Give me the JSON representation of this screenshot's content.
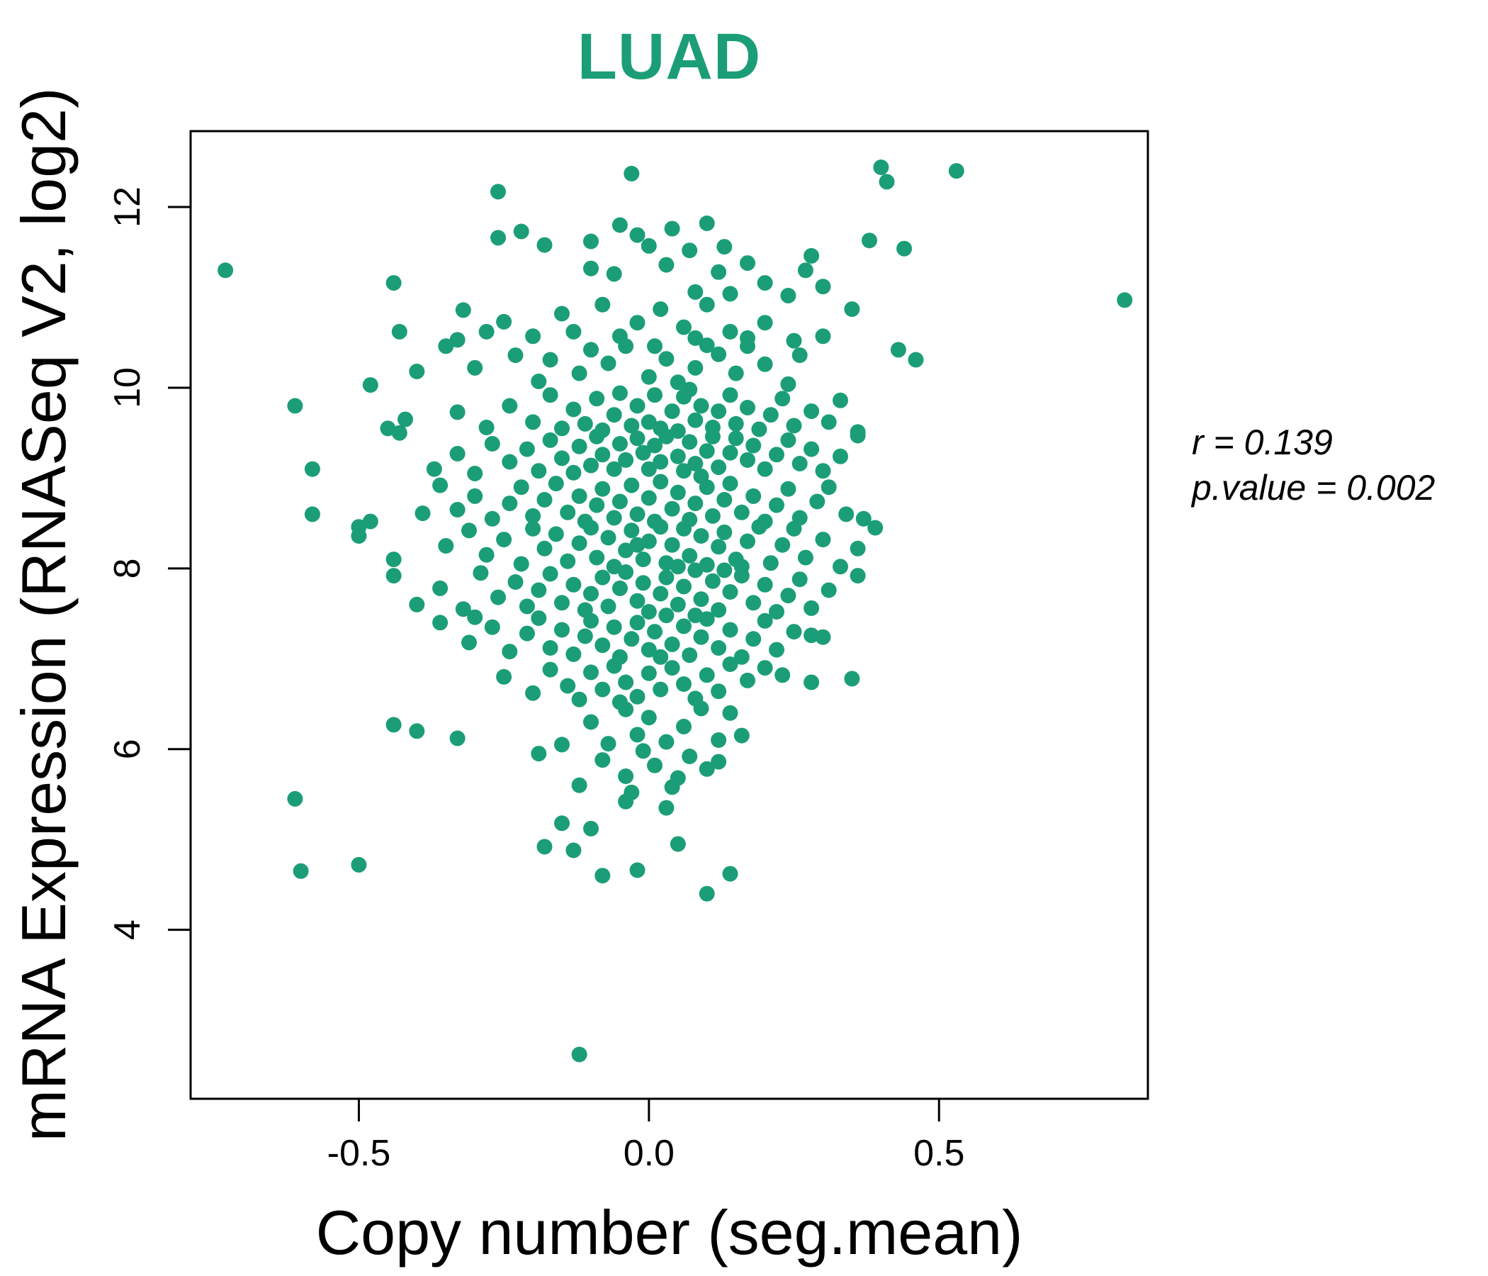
{
  "header": {
    "title": "LUAD",
    "title_color": "#1b9e77"
  },
  "annotation": {
    "line1": "r = 0.139",
    "line2": "p.value = 0.002"
  },
  "chart_data": {
    "type": "scatter",
    "title": "LUAD",
    "xlabel": "Copy number (seg.mean)",
    "ylabel": "mRNA Expression (RNASeq V2, log2)",
    "xlim": [
      -0.79,
      0.86
    ],
    "ylim": [
      2.13,
      12.84
    ],
    "x_ticks": [
      -0.5,
      0.0,
      0.5
    ],
    "x_tick_labels": [
      "-0.5",
      "0.0",
      "0.5"
    ],
    "y_ticks": [
      4,
      6,
      8,
      10,
      12
    ],
    "y_tick_labels": [
      "4",
      "6",
      "8",
      "10",
      "12"
    ],
    "grid": false,
    "legend": null,
    "point_color": "#1b9e77",
    "point_radius": 11,
    "stats": {
      "r": 0.139,
      "p_value": 0.002
    },
    "points": [
      [
        -0.26,
        12.17
      ],
      [
        -0.03,
        12.37
      ],
      [
        0.4,
        12.44
      ],
      [
        0.41,
        12.28
      ],
      [
        0.53,
        12.4
      ],
      [
        -0.26,
        11.66
      ],
      [
        -0.22,
        11.73
      ],
      [
        -0.18,
        11.58
      ],
      [
        -0.1,
        11.62
      ],
      [
        -0.05,
        11.8
      ],
      [
        -0.02,
        11.69
      ],
      [
        0.0,
        11.57
      ],
      [
        0.04,
        11.76
      ],
      [
        0.07,
        11.52
      ],
      [
        0.1,
        11.82
      ],
      [
        0.13,
        11.56
      ],
      [
        0.38,
        11.63
      ],
      [
        0.44,
        11.54
      ],
      [
        -0.73,
        11.3
      ],
      [
        -0.44,
        11.16
      ],
      [
        -0.1,
        11.32
      ],
      [
        -0.06,
        11.26
      ],
      [
        0.03,
        11.36
      ],
      [
        0.08,
        11.06
      ],
      [
        0.12,
        11.28
      ],
      [
        0.14,
        11.04
      ],
      [
        0.17,
        11.38
      ],
      [
        0.2,
        11.16
      ],
      [
        0.24,
        11.02
      ],
      [
        0.28,
        11.46
      ],
      [
        0.27,
        11.3
      ],
      [
        0.3,
        11.12
      ],
      [
        0.82,
        10.97
      ],
      [
        -0.43,
        10.62
      ],
      [
        -0.32,
        10.86
      ],
      [
        -0.33,
        10.53
      ],
      [
        -0.28,
        10.62
      ],
      [
        -0.25,
        10.73
      ],
      [
        -0.2,
        10.57
      ],
      [
        -0.15,
        10.82
      ],
      [
        -0.13,
        10.62
      ],
      [
        -0.08,
        10.92
      ],
      [
        -0.05,
        10.57
      ],
      [
        -0.02,
        10.72
      ],
      [
        0.02,
        10.87
      ],
      [
        0.06,
        10.67
      ],
      [
        0.08,
        10.55
      ],
      [
        0.1,
        10.92
      ],
      [
        0.14,
        10.62
      ],
      [
        0.17,
        10.55
      ],
      [
        0.2,
        10.72
      ],
      [
        0.25,
        10.52
      ],
      [
        0.3,
        10.57
      ],
      [
        0.35,
        10.87
      ],
      [
        -0.48,
        10.03
      ],
      [
        -0.4,
        10.18
      ],
      [
        -0.35,
        10.46
      ],
      [
        -0.3,
        10.22
      ],
      [
        -0.23,
        10.36
      ],
      [
        -0.19,
        10.07
      ],
      [
        -0.17,
        10.31
      ],
      [
        -0.12,
        10.16
      ],
      [
        -0.1,
        10.42
      ],
      [
        -0.07,
        10.27
      ],
      [
        -0.04,
        10.46
      ],
      [
        0.0,
        10.12
      ],
      [
        0.01,
        10.46
      ],
      [
        0.03,
        10.32
      ],
      [
        0.05,
        10.06
      ],
      [
        0.08,
        10.22
      ],
      [
        0.1,
        10.47
      ],
      [
        0.12,
        10.37
      ],
      [
        0.15,
        10.16
      ],
      [
        0.17,
        10.46
      ],
      [
        0.2,
        10.26
      ],
      [
        0.24,
        10.04
      ],
      [
        0.26,
        10.36
      ],
      [
        0.43,
        10.42
      ],
      [
        0.46,
        10.31
      ],
      [
        -0.61,
        9.8
      ],
      [
        -0.45,
        9.55
      ],
      [
        -0.43,
        9.5
      ],
      [
        -0.42,
        9.65
      ],
      [
        -0.33,
        9.73
      ],
      [
        -0.28,
        9.56
      ],
      [
        -0.24,
        9.8
      ],
      [
        -0.2,
        9.62
      ],
      [
        -0.17,
        9.92
      ],
      [
        -0.15,
        9.55
      ],
      [
        -0.13,
        9.76
      ],
      [
        -0.11,
        9.6
      ],
      [
        -0.09,
        9.88
      ],
      [
        -0.08,
        9.53
      ],
      [
        -0.06,
        9.7
      ],
      [
        -0.05,
        9.94
      ],
      [
        -0.03,
        9.58
      ],
      [
        -0.02,
        9.8
      ],
      [
        0.0,
        9.62
      ],
      [
        0.01,
        9.92
      ],
      [
        0.02,
        9.55
      ],
      [
        0.04,
        9.74
      ],
      [
        0.05,
        9.52
      ],
      [
        0.06,
        9.9
      ],
      [
        0.08,
        9.64
      ],
      [
        0.09,
        9.8
      ],
      [
        0.11,
        9.56
      ],
      [
        0.12,
        9.74
      ],
      [
        0.14,
        9.92
      ],
      [
        0.15,
        9.6
      ],
      [
        0.17,
        9.78
      ],
      [
        0.19,
        9.54
      ],
      [
        0.21,
        9.7
      ],
      [
        0.23,
        9.88
      ],
      [
        0.25,
        9.58
      ],
      [
        0.28,
        9.74
      ],
      [
        0.31,
        9.62
      ],
      [
        0.33,
        9.86
      ],
      [
        0.36,
        9.51
      ],
      [
        0.07,
        9.98
      ],
      [
        -0.58,
        9.1
      ],
      [
        -0.37,
        9.1
      ],
      [
        -0.33,
        9.27
      ],
      [
        -0.3,
        9.05
      ],
      [
        -0.27,
        9.38
      ],
      [
        -0.24,
        9.18
      ],
      [
        -0.21,
        9.32
      ],
      [
        -0.19,
        9.08
      ],
      [
        -0.17,
        9.42
      ],
      [
        -0.15,
        9.22
      ],
      [
        -0.13,
        9.06
      ],
      [
        -0.12,
        9.35
      ],
      [
        -0.1,
        9.14
      ],
      [
        -0.09,
        9.46
      ],
      [
        -0.08,
        9.26
      ],
      [
        -0.06,
        9.1
      ],
      [
        -0.05,
        9.38
      ],
      [
        -0.04,
        9.2
      ],
      [
        -0.02,
        9.44
      ],
      [
        -0.01,
        9.28
      ],
      [
        0.0,
        9.1
      ],
      [
        0.01,
        9.36
      ],
      [
        0.02,
        9.18
      ],
      [
        0.03,
        9.46
      ],
      [
        0.05,
        9.24
      ],
      [
        0.06,
        9.08
      ],
      [
        0.07,
        9.4
      ],
      [
        0.08,
        9.16
      ],
      [
        0.1,
        9.3
      ],
      [
        0.11,
        9.46
      ],
      [
        0.12,
        9.12
      ],
      [
        0.14,
        9.28
      ],
      [
        0.15,
        9.44
      ],
      [
        0.17,
        9.2
      ],
      [
        0.18,
        9.36
      ],
      [
        0.2,
        9.1
      ],
      [
        0.22,
        9.26
      ],
      [
        0.24,
        9.42
      ],
      [
        0.26,
        9.16
      ],
      [
        0.28,
        9.32
      ],
      [
        0.3,
        9.08
      ],
      [
        0.33,
        9.24
      ],
      [
        0.36,
        9.47
      ],
      [
        0.09,
        9.02
      ],
      [
        -0.58,
        8.6
      ],
      [
        -0.5,
        8.46
      ],
      [
        -0.48,
        8.52
      ],
      [
        -0.39,
        8.61
      ],
      [
        -0.36,
        8.92
      ],
      [
        -0.33,
        8.65
      ],
      [
        -0.3,
        8.8
      ],
      [
        -0.27,
        8.55
      ],
      [
        -0.24,
        8.72
      ],
      [
        -0.22,
        8.9
      ],
      [
        -0.2,
        8.58
      ],
      [
        -0.18,
        8.76
      ],
      [
        -0.16,
        8.94
      ],
      [
        -0.14,
        8.62
      ],
      [
        -0.12,
        8.8
      ],
      [
        -0.11,
        8.52
      ],
      [
        -0.09,
        8.7
      ],
      [
        -0.08,
        8.88
      ],
      [
        -0.06,
        8.56
      ],
      [
        -0.05,
        8.74
      ],
      [
        -0.03,
        8.92
      ],
      [
        -0.02,
        8.6
      ],
      [
        0.0,
        8.78
      ],
      [
        0.01,
        8.52
      ],
      [
        0.02,
        8.96
      ],
      [
        0.04,
        8.66
      ],
      [
        0.05,
        8.84
      ],
      [
        0.07,
        8.54
      ],
      [
        0.08,
        8.72
      ],
      [
        0.1,
        8.9
      ],
      [
        0.11,
        8.58
      ],
      [
        0.13,
        8.76
      ],
      [
        0.14,
        8.94
      ],
      [
        0.16,
        8.62
      ],
      [
        0.18,
        8.8
      ],
      [
        0.2,
        8.52
      ],
      [
        0.22,
        8.7
      ],
      [
        0.24,
        8.88
      ],
      [
        0.26,
        8.56
      ],
      [
        0.29,
        8.74
      ],
      [
        0.31,
        8.9
      ],
      [
        0.34,
        8.6
      ],
      [
        0.37,
        8.55
      ],
      [
        0.39,
        8.45
      ],
      [
        -0.5,
        8.36
      ],
      [
        -0.44,
        8.1
      ],
      [
        -0.35,
        8.25
      ],
      [
        -0.31,
        8.42
      ],
      [
        -0.28,
        8.15
      ],
      [
        -0.25,
        8.32
      ],
      [
        -0.22,
        8.05
      ],
      [
        -0.2,
        8.44
      ],
      [
        -0.18,
        8.22
      ],
      [
        -0.16,
        8.38
      ],
      [
        -0.14,
        8.08
      ],
      [
        -0.12,
        8.28
      ],
      [
        -0.1,
        8.45
      ],
      [
        -0.09,
        8.12
      ],
      [
        -0.07,
        8.34
      ],
      [
        -0.06,
        8.02
      ],
      [
        -0.04,
        8.2
      ],
      [
        -0.03,
        8.42
      ],
      [
        -0.02,
        8.26
      ],
      [
        -0.01,
        8.1
      ],
      [
        0.0,
        8.3
      ],
      [
        0.02,
        8.46
      ],
      [
        0.03,
        8.06
      ],
      [
        0.04,
        8.26
      ],
      [
        0.05,
        8.02
      ],
      [
        0.06,
        8.44
      ],
      [
        0.07,
        8.14
      ],
      [
        0.09,
        8.36
      ],
      [
        0.1,
        8.04
      ],
      [
        0.12,
        8.24
      ],
      [
        0.13,
        8.4
      ],
      [
        0.15,
        8.1
      ],
      [
        0.16,
        8.02
      ],
      [
        0.17,
        8.3
      ],
      [
        0.19,
        8.46
      ],
      [
        0.21,
        8.06
      ],
      [
        0.23,
        8.26
      ],
      [
        0.25,
        8.44
      ],
      [
        0.27,
        8.12
      ],
      [
        0.3,
        8.32
      ],
      [
        0.33,
        8.02
      ],
      [
        0.36,
        8.22
      ],
      [
        -0.44,
        7.92
      ],
      [
        -0.4,
        7.6
      ],
      [
        -0.36,
        7.78
      ],
      [
        -0.32,
        7.55
      ],
      [
        -0.29,
        7.95
      ],
      [
        -0.26,
        7.68
      ],
      [
        -0.23,
        7.85
      ],
      [
        -0.21,
        7.58
      ],
      [
        -0.19,
        7.76
      ],
      [
        -0.17,
        7.94
      ],
      [
        -0.15,
        7.62
      ],
      [
        -0.13,
        7.82
      ],
      [
        -0.11,
        7.54
      ],
      [
        -0.1,
        7.72
      ],
      [
        -0.08,
        7.9
      ],
      [
        -0.07,
        7.58
      ],
      [
        -0.05,
        7.78
      ],
      [
        -0.04,
        7.96
      ],
      [
        -0.02,
        7.64
      ],
      [
        -0.01,
        7.84
      ],
      [
        0.0,
        7.52
      ],
      [
        0.02,
        7.72
      ],
      [
        0.03,
        7.9
      ],
      [
        0.05,
        7.6
      ],
      [
        0.06,
        7.8
      ],
      [
        0.08,
        7.98
      ],
      [
        0.09,
        7.66
      ],
      [
        0.11,
        7.86
      ],
      [
        0.12,
        7.54
      ],
      [
        0.13,
        7.98
      ],
      [
        0.14,
        7.74
      ],
      [
        0.16,
        7.92
      ],
      [
        0.18,
        7.62
      ],
      [
        0.2,
        7.82
      ],
      [
        0.22,
        7.52
      ],
      [
        0.24,
        7.7
      ],
      [
        0.26,
        7.88
      ],
      [
        0.28,
        7.56
      ],
      [
        0.31,
        7.76
      ],
      [
        0.36,
        7.92
      ],
      [
        -0.36,
        7.4
      ],
      [
        -0.31,
        7.18
      ],
      [
        -0.3,
        7.46
      ],
      [
        -0.27,
        7.35
      ],
      [
        -0.24,
        7.08
      ],
      [
        -0.21,
        7.28
      ],
      [
        -0.19,
        7.45
      ],
      [
        -0.17,
        7.12
      ],
      [
        -0.15,
        7.32
      ],
      [
        -0.13,
        7.05
      ],
      [
        -0.11,
        7.25
      ],
      [
        -0.1,
        7.42
      ],
      [
        -0.08,
        7.15
      ],
      [
        -0.06,
        7.35
      ],
      [
        -0.05,
        7.02
      ],
      [
        -0.03,
        7.22
      ],
      [
        -0.02,
        7.4
      ],
      [
        0.0,
        7.1
      ],
      [
        0.01,
        7.3
      ],
      [
        0.02,
        7.02
      ],
      [
        0.03,
        7.48
      ],
      [
        0.04,
        7.16
      ],
      [
        0.06,
        7.36
      ],
      [
        0.07,
        7.04
      ],
      [
        0.08,
        7.48
      ],
      [
        0.09,
        7.24
      ],
      [
        0.1,
        7.44
      ],
      [
        0.12,
        7.12
      ],
      [
        0.14,
        7.32
      ],
      [
        0.16,
        7.02
      ],
      [
        0.18,
        7.22
      ],
      [
        0.2,
        7.42
      ],
      [
        0.22,
        7.1
      ],
      [
        0.25,
        7.3
      ],
      [
        0.28,
        7.26
      ],
      [
        0.3,
        7.24
      ],
      [
        -0.25,
        6.8
      ],
      [
        -0.2,
        6.62
      ],
      [
        -0.17,
        6.88
      ],
      [
        -0.14,
        6.7
      ],
      [
        -0.12,
        6.55
      ],
      [
        -0.1,
        6.85
      ],
      [
        -0.08,
        6.66
      ],
      [
        -0.06,
        6.92
      ],
      [
        -0.05,
        6.52
      ],
      [
        -0.04,
        6.74
      ],
      [
        -0.02,
        6.58
      ],
      [
        0.0,
        6.84
      ],
      [
        0.02,
        6.66
      ],
      [
        0.04,
        6.9
      ],
      [
        0.06,
        6.72
      ],
      [
        0.08,
        6.56
      ],
      [
        0.1,
        6.82
      ],
      [
        0.12,
        6.64
      ],
      [
        0.14,
        6.94
      ],
      [
        0.17,
        6.76
      ],
      [
        0.2,
        6.9
      ],
      [
        0.23,
        6.82
      ],
      [
        0.28,
        6.74
      ],
      [
        0.35,
        6.78
      ],
      [
        -0.44,
        6.27
      ],
      [
        -0.4,
        6.2
      ],
      [
        -0.33,
        6.12
      ],
      [
        -0.15,
        6.05
      ],
      [
        -0.1,
        6.3
      ],
      [
        -0.07,
        6.06
      ],
      [
        -0.04,
        6.44
      ],
      [
        -0.02,
        6.16
      ],
      [
        0.0,
        6.35
      ],
      [
        0.03,
        6.08
      ],
      [
        0.06,
        6.25
      ],
      [
        0.09,
        6.45
      ],
      [
        0.12,
        6.1
      ],
      [
        0.14,
        6.4
      ],
      [
        0.16,
        6.15
      ],
      [
        -0.19,
        5.95
      ],
      [
        -0.12,
        5.6
      ],
      [
        -0.08,
        5.88
      ],
      [
        -0.04,
        5.7
      ],
      [
        -0.03,
        5.52
      ],
      [
        -0.01,
        5.98
      ],
      [
        0.01,
        5.82
      ],
      [
        0.04,
        5.58
      ],
      [
        0.05,
        5.68
      ],
      [
        0.07,
        5.92
      ],
      [
        0.1,
        5.78
      ],
      [
        0.12,
        5.86
      ],
      [
        -0.61,
        5.45
      ],
      [
        -0.15,
        5.18
      ],
      [
        -0.1,
        5.12
      ],
      [
        -0.04,
        5.42
      ],
      [
        0.03,
        5.35
      ],
      [
        -0.6,
        4.65
      ],
      [
        -0.5,
        4.72
      ],
      [
        -0.18,
        4.92
      ],
      [
        -0.13,
        4.88
      ],
      [
        -0.08,
        4.6
      ],
      [
        -0.02,
        4.66
      ],
      [
        0.05,
        4.95
      ],
      [
        0.1,
        4.4
      ],
      [
        0.14,
        4.62
      ],
      [
        -0.12,
        2.62
      ]
    ]
  }
}
